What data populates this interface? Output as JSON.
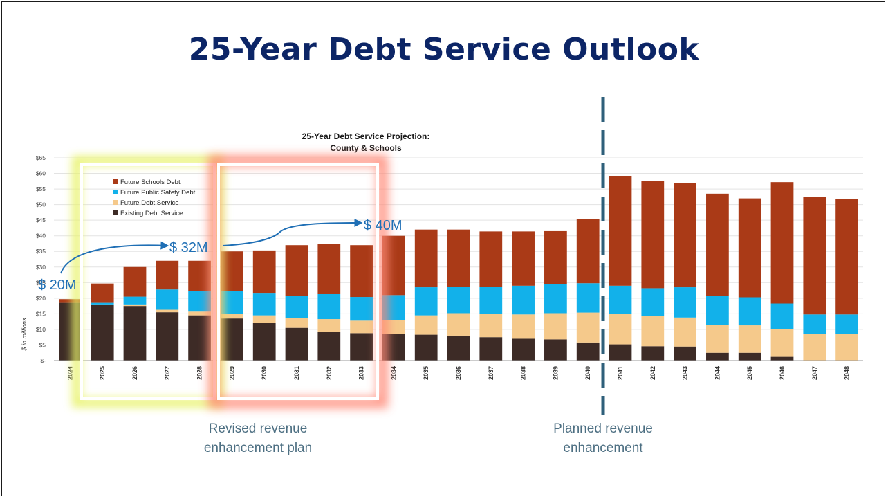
{
  "slide": {
    "title": "25-Year Debt Service Outlook",
    "labels": {
      "revised": "Revised revenue enhancement plan",
      "planned": "Planned revenue enhancement"
    },
    "callouts": [
      "$ 20M",
      "$ 32M",
      "$ 40M"
    ]
  },
  "chart_data": {
    "type": "bar",
    "stacked": true,
    "title": "25-Year Debt Service Projection:",
    "subtitle": "County & Schools",
    "ylabel": "$ in millions",
    "ylim": [
      0,
      65
    ],
    "yticks": [
      "$-",
      "$5",
      "$10",
      "$15",
      "$20",
      "$25",
      "$30",
      "$35",
      "$40",
      "$45",
      "$50",
      "$55",
      "$60",
      "$65"
    ],
    "grid": true,
    "legend_position": "top-left",
    "categories": [
      "2024",
      "2025",
      "2026",
      "2027",
      "2028",
      "2029",
      "2030",
      "2031",
      "2032",
      "2033",
      "2034",
      "2035",
      "2036",
      "2037",
      "2038",
      "2039",
      "2040",
      "2041",
      "2042",
      "2043",
      "2044",
      "2045",
      "2046",
      "2047",
      "2048"
    ],
    "series": [
      {
        "name": "Existing Debt Service",
        "color": "#3d2b26",
        "values": [
          18.5,
          18.0,
          17.5,
          15.5,
          14.5,
          13.5,
          12.0,
          10.5,
          9.3,
          8.8,
          8.5,
          8.3,
          8.0,
          7.5,
          7.0,
          6.8,
          5.8,
          5.2,
          4.6,
          4.5,
          2.5,
          2.5,
          1.2,
          0,
          0
        ]
      },
      {
        "name": "Future Debt Service",
        "color": "#f5c98b",
        "values": [
          0,
          0,
          0.5,
          0.8,
          1.2,
          1.5,
          2.5,
          3.2,
          4.0,
          4.0,
          4.5,
          6.2,
          7.2,
          7.5,
          7.8,
          8.4,
          9.6,
          9.8,
          9.6,
          9.3,
          9.0,
          8.8,
          8.8,
          8.5,
          8.5
        ]
      },
      {
        "name": "Future Public Safety Debt",
        "color": "#12b1ea",
        "values": [
          0,
          0.5,
          2.5,
          6.5,
          6.5,
          7.2,
          7.0,
          7.0,
          8.0,
          7.6,
          8.0,
          9.0,
          8.5,
          8.7,
          9.2,
          9.3,
          9.4,
          9.0,
          9.0,
          9.7,
          9.3,
          9.0,
          8.3,
          6.3,
          6.3
        ]
      },
      {
        "name": "Future Schools Debt",
        "color": "#aa3a17",
        "values": [
          1.2,
          6.2,
          9.5,
          9.2,
          9.8,
          12.8,
          13.8,
          16.3,
          16.0,
          16.6,
          19.0,
          18.5,
          18.3,
          17.7,
          17.4,
          17.0,
          20.5,
          35.2,
          34.3,
          33.5,
          32.7,
          31.7,
          38.9,
          37.7,
          36.9
        ]
      }
    ]
  }
}
